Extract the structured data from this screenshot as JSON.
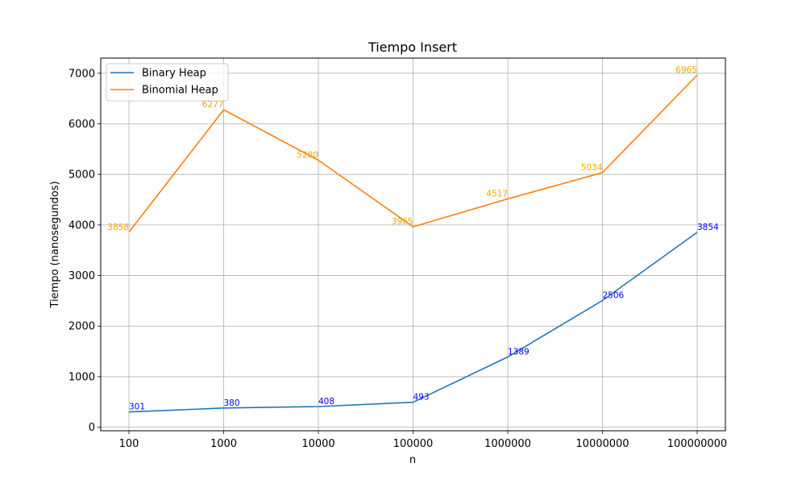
{
  "chart_data": {
    "type": "line",
    "title": "Tiempo Insert",
    "xlabel": "n",
    "ylabel": "Tiempo (nanosegundos)",
    "categories": [
      "100",
      "1000",
      "10000",
      "100000",
      "1000000",
      "10000000",
      "100000000"
    ],
    "ylim": [
      -70,
      7300
    ],
    "yticks": [
      0,
      1000,
      2000,
      3000,
      4000,
      5000,
      6000,
      7000
    ],
    "grid": true,
    "legend_position": "top-left",
    "series": [
      {
        "name": "Binary Heap",
        "color": "#1f77b4",
        "label_color": "#0000ff",
        "values": [
          301,
          380,
          408,
          493,
          1389,
          2506,
          3854
        ],
        "labels": [
          "301",
          "380",
          "408",
          "493",
          "1389",
          "2506",
          "3854"
        ]
      },
      {
        "name": "Binomial Heap",
        "color": "#ff7f0e",
        "label_color": "#ffa500",
        "values": [
          3858,
          6277,
          5280,
          3965,
          4517,
          5034,
          6965
        ],
        "labels": [
          "3858",
          "6277",
          "5280",
          "3965",
          "4517",
          "5034",
          "6965"
        ]
      }
    ]
  }
}
